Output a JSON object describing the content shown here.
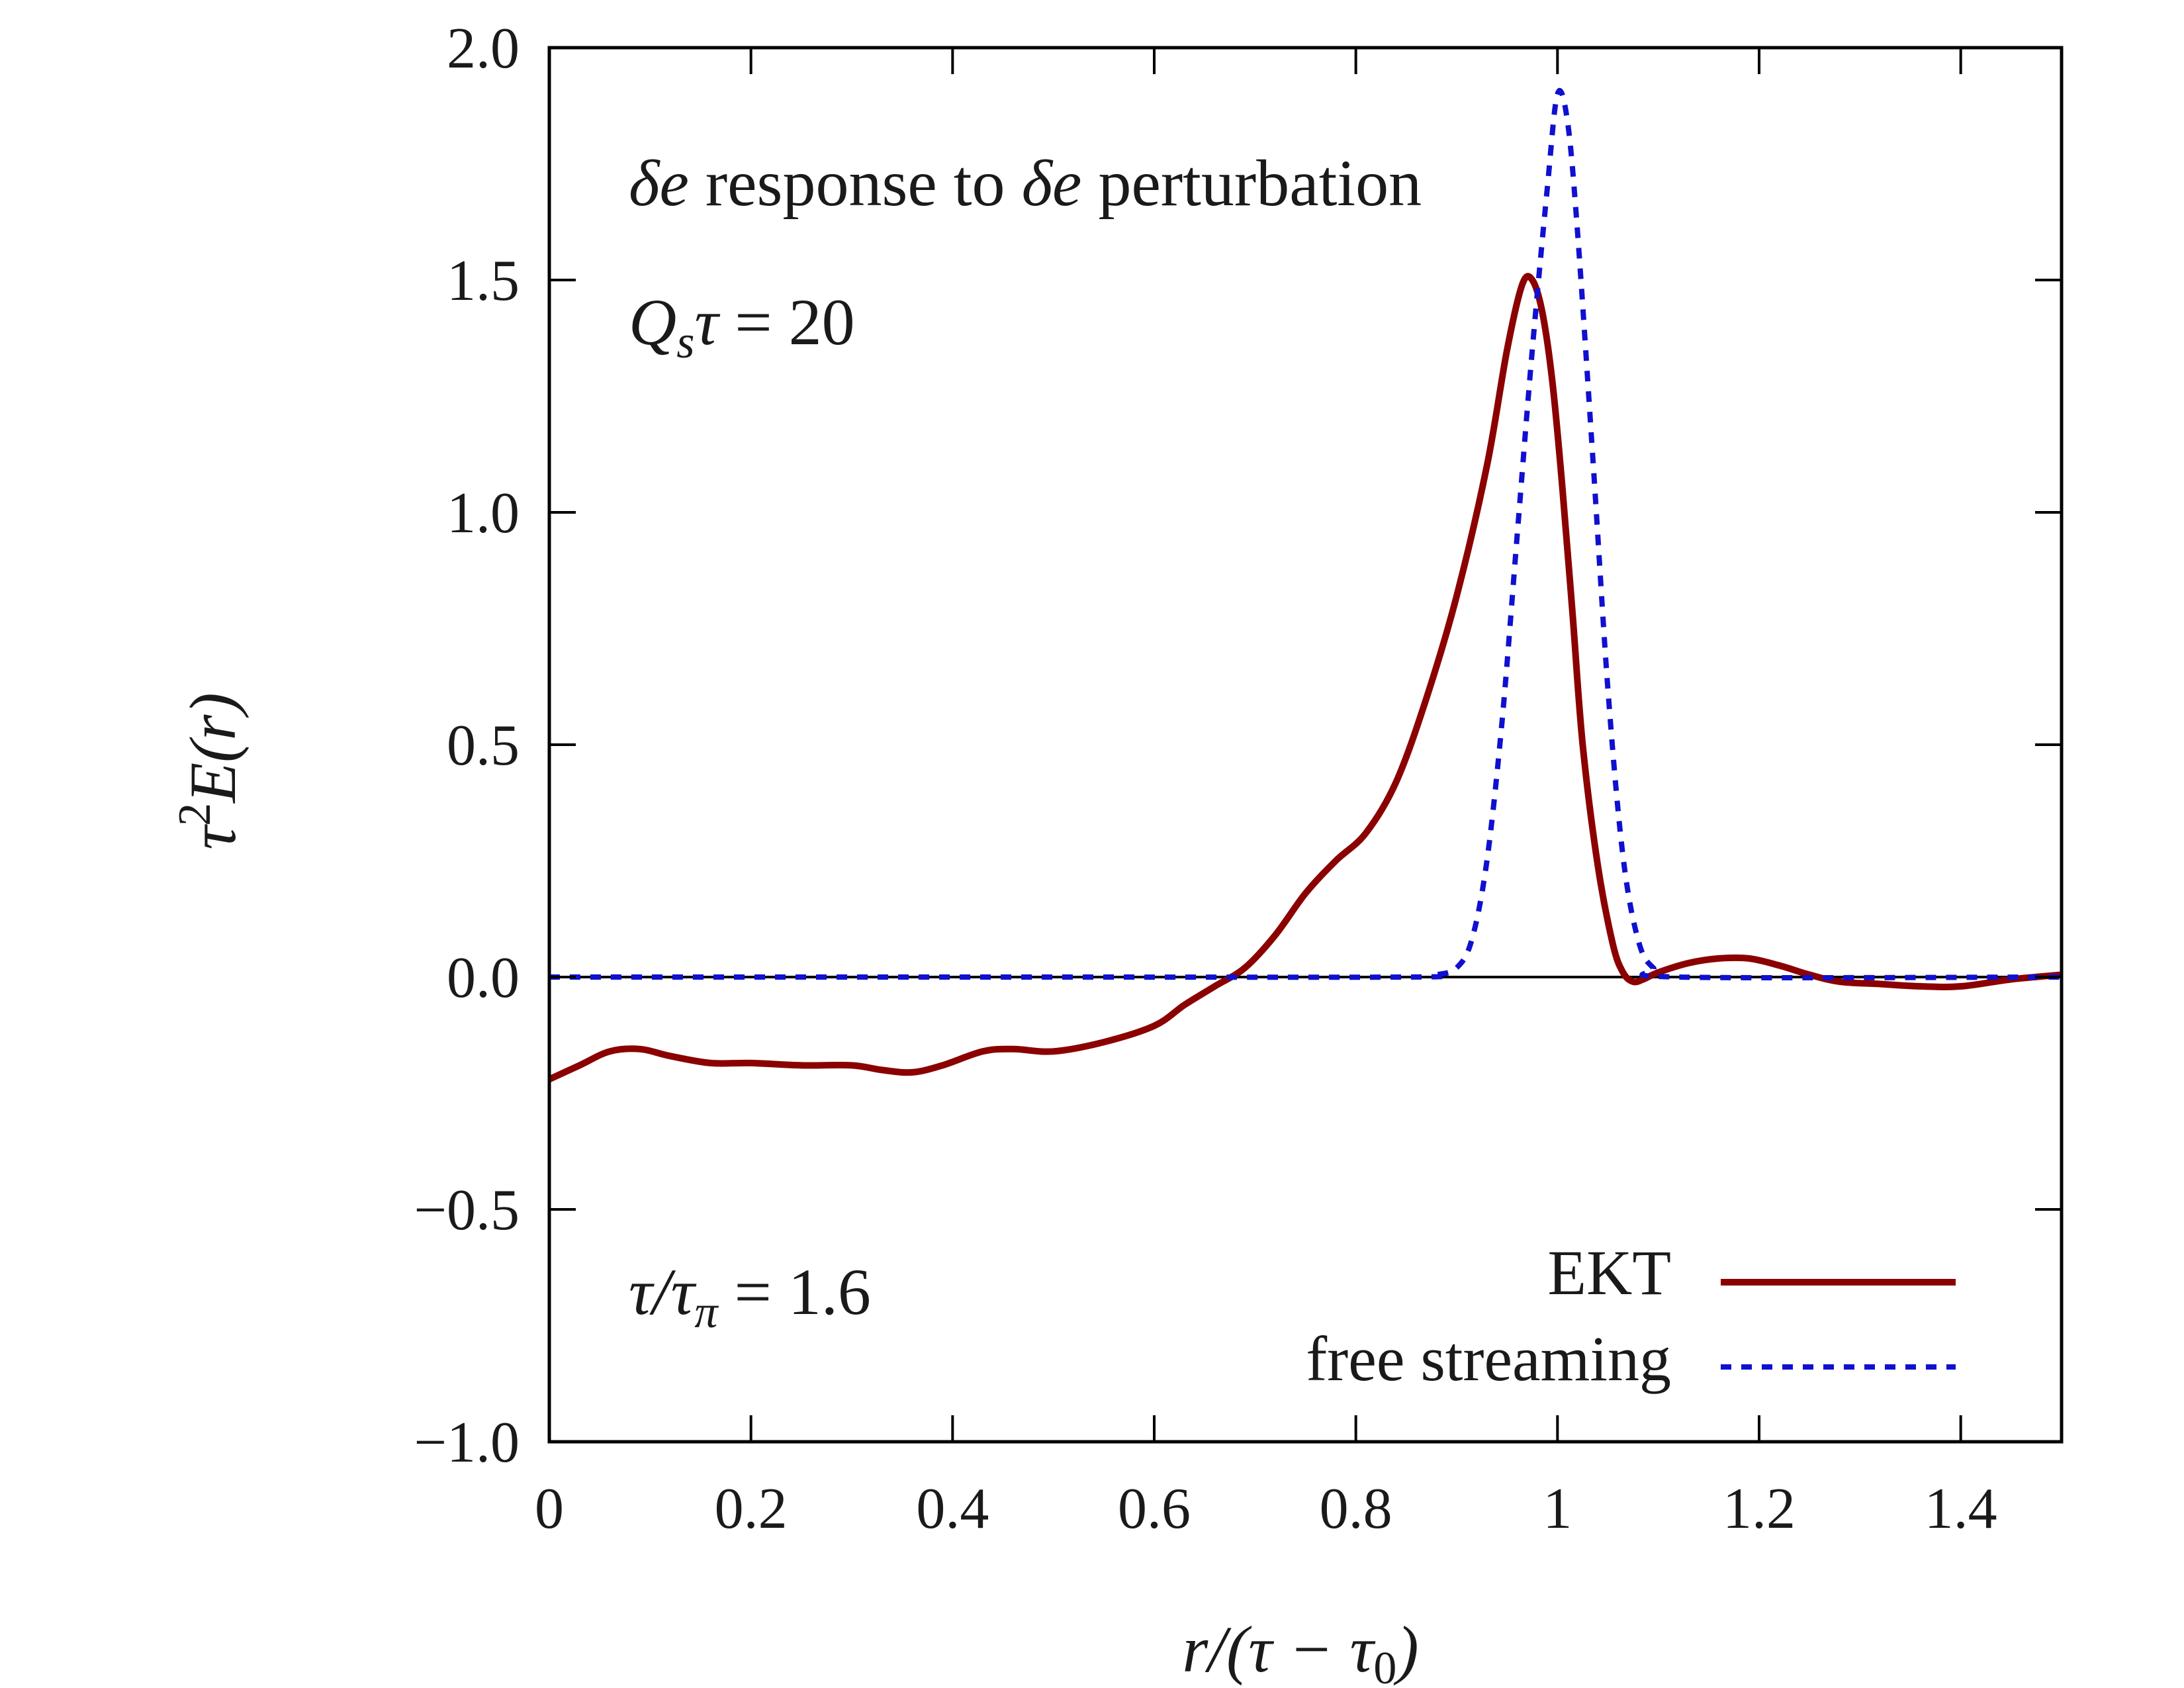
{
  "chart_data": {
    "type": "line",
    "xlabel": "r/(τ − τ0)",
    "ylabel": "τ²E(r)",
    "xlim": [
      0,
      1.5
    ],
    "ylim": [
      -1.0,
      2.0
    ],
    "xticks": [
      "0",
      "0.2",
      "0.4",
      "0.6",
      "0.8",
      "1",
      "1.2",
      "1.4"
    ],
    "yticks": [
      "−1.0",
      "−0.5",
      "0.0",
      "0.5",
      "1.0",
      "1.5",
      "2.0"
    ],
    "grid": false,
    "legend_position": "bottom-right",
    "annotations": {
      "line1": "δe response to δe perturbation",
      "line2": "Qsτ = 20",
      "line3": "τ/τπ = 1.6"
    },
    "series": [
      {
        "name": "EKT",
        "color": "#8b0000",
        "style": "solid",
        "points": [
          [
            0.0,
            -0.22
          ],
          [
            0.03,
            -0.19
          ],
          [
            0.06,
            -0.16
          ],
          [
            0.09,
            -0.155
          ],
          [
            0.12,
            -0.17
          ],
          [
            0.16,
            -0.185
          ],
          [
            0.2,
            -0.185
          ],
          [
            0.25,
            -0.19
          ],
          [
            0.3,
            -0.19
          ],
          [
            0.33,
            -0.2
          ],
          [
            0.36,
            -0.205
          ],
          [
            0.39,
            -0.19
          ],
          [
            0.43,
            -0.16
          ],
          [
            0.46,
            -0.155
          ],
          [
            0.5,
            -0.16
          ],
          [
            0.55,
            -0.14
          ],
          [
            0.6,
            -0.105
          ],
          [
            0.63,
            -0.06
          ],
          [
            0.66,
            -0.02
          ],
          [
            0.69,
            0.02
          ],
          [
            0.72,
            0.09
          ],
          [
            0.75,
            0.18
          ],
          [
            0.78,
            0.25
          ],
          [
            0.81,
            0.31
          ],
          [
            0.84,
            0.42
          ],
          [
            0.87,
            0.6
          ],
          [
            0.9,
            0.82
          ],
          [
            0.93,
            1.1
          ],
          [
            0.95,
            1.35
          ],
          [
            0.965,
            1.49
          ],
          [
            0.975,
            1.5
          ],
          [
            0.985,
            1.43
          ],
          [
            0.995,
            1.28
          ],
          [
            1.005,
            1.05
          ],
          [
            1.015,
            0.78
          ],
          [
            1.025,
            0.5
          ],
          [
            1.04,
            0.24
          ],
          [
            1.055,
            0.07
          ],
          [
            1.065,
            0.01
          ],
          [
            1.075,
            -0.01
          ],
          [
            1.085,
            -0.005
          ],
          [
            1.1,
            0.01
          ],
          [
            1.13,
            0.03
          ],
          [
            1.16,
            0.04
          ],
          [
            1.19,
            0.04
          ],
          [
            1.22,
            0.025
          ],
          [
            1.25,
            0.005
          ],
          [
            1.28,
            -0.01
          ],
          [
            1.32,
            -0.015
          ],
          [
            1.36,
            -0.02
          ],
          [
            1.4,
            -0.02
          ],
          [
            1.45,
            -0.005
          ],
          [
            1.5,
            0.005
          ]
        ]
      },
      {
        "name": "free streaming",
        "color": "#1010d0",
        "style": "dashed",
        "points": [
          [
            0.0,
            0.0
          ],
          [
            0.5,
            0.0
          ],
          [
            0.85,
            0.0
          ],
          [
            0.88,
            0.005
          ],
          [
            0.9,
            0.02
          ],
          [
            0.915,
            0.08
          ],
          [
            0.93,
            0.25
          ],
          [
            0.945,
            0.55
          ],
          [
            0.96,
            0.95
          ],
          [
            0.975,
            1.35
          ],
          [
            0.99,
            1.7
          ],
          [
            1.0,
            1.9
          ],
          [
            1.01,
            1.84
          ],
          [
            1.02,
            1.6
          ],
          [
            1.035,
            1.12
          ],
          [
            1.05,
            0.62
          ],
          [
            1.065,
            0.26
          ],
          [
            1.08,
            0.08
          ],
          [
            1.095,
            0.02
          ],
          [
            1.12,
            0.0
          ],
          [
            1.5,
            0.0
          ]
        ]
      }
    ]
  }
}
